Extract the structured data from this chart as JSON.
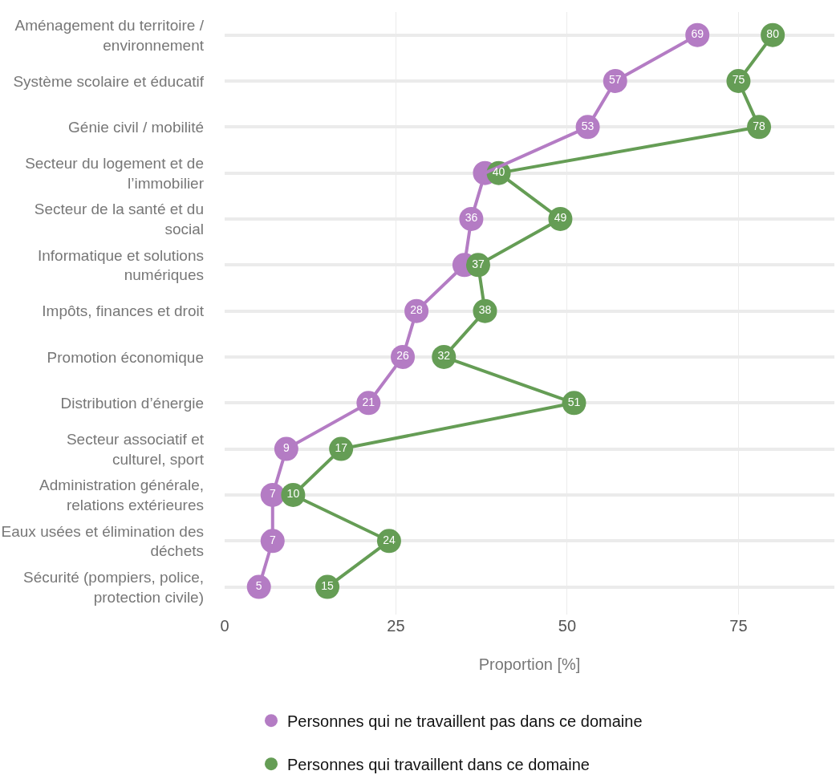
{
  "chart_data": {
    "type": "line",
    "orientation": "horizontal",
    "xlabel": "Proportion [%]",
    "categories": [
      "Aménagement du territoire / environnement",
      "Système scolaire et éducatif",
      "Génie civil / mobilité",
      "Secteur du logement et de l’immobilier",
      "Secteur de la santé et du social",
      "Informatique et solutions numériques",
      "Impôts, finances et droit",
      "Promotion économique",
      "Distribution d’énergie",
      "Secteur associatif et culturel, sport",
      "Administration générale, relations extérieures",
      "Eaux usées et élimination des déchets",
      "Sécurité (pompiers, police, protection civile)"
    ],
    "series": [
      {
        "name": "Personnes qui ne travaillent pas dans ce domaine",
        "color": "#b47cc4",
        "values": [
          69,
          57,
          53,
          38,
          36,
          35,
          28,
          26,
          21,
          9,
          7,
          7,
          5
        ],
        "value_labels": [
          "69",
          "57",
          "53",
          null,
          "36",
          null,
          "28",
          "26",
          "21",
          "9",
          "7",
          "7",
          "5"
        ]
      },
      {
        "name": "Personnes qui travaillent dans ce domaine",
        "color": "#659d55",
        "values": [
          80,
          75,
          78,
          40,
          49,
          37,
          38,
          32,
          51,
          17,
          10,
          24,
          15
        ],
        "value_labels": [
          "80",
          "75",
          "78",
          "40",
          "49",
          "37",
          "38",
          "32",
          "51",
          "17",
          "10",
          "24",
          "15"
        ]
      }
    ],
    "xlim": [
      0,
      89
    ],
    "xticks": [
      0,
      25,
      50,
      75
    ],
    "grid": true,
    "legend": "bottom",
    "marker": "circle",
    "line_style": "solid"
  }
}
